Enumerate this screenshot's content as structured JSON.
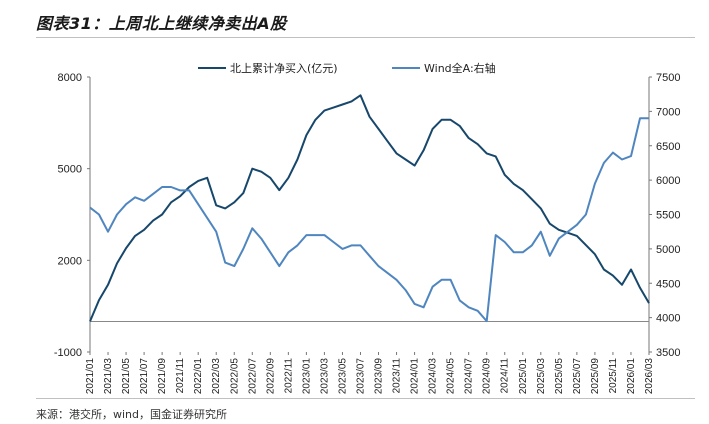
{
  "title": "图表31：上周北上继续净卖出A股",
  "source": "来源：港交所，wind，国金证券研究所",
  "chart_data": {
    "type": "line",
    "title": "",
    "legend": {
      "placement": "top-center",
      "entries": [
        "北上累计净买入(亿元)",
        "Wind全A:右轴"
      ]
    },
    "x_ticks": [
      "2021/01",
      "2021/03",
      "2021/05",
      "2021/07",
      "2021/09",
      "2021/11",
      "2022/01",
      "2022/03",
      "2022/05",
      "2022/07",
      "2022/09",
      "2022/11",
      "2023/01",
      "2023/03",
      "2023/05",
      "2023/07",
      "2023/09",
      "2023/11",
      "2024/01",
      "2024/03",
      "2024/05",
      "2024/07",
      "2024/09",
      "2024/11",
      "2025/01",
      "2025/03",
      "2025/05",
      "2025/07",
      "2025/09",
      "2025/11",
      "2026/01",
      "2026/03"
    ],
    "y_left": {
      "ticks": [
        "8000",
        "5000",
        "2000",
        "-1000"
      ],
      "min": -1000,
      "max": 8000
    },
    "y_right": {
      "ticks": [
        "7500",
        "7000",
        "6500",
        "6000",
        "5500",
        "5000",
        "4500",
        "4000",
        "3500"
      ],
      "min": 3500,
      "max": 7500
    },
    "grid": false,
    "series": [
      {
        "name": "北上累计净买入(亿元)",
        "axis": "left",
        "color": "#17476b",
        "x": [
          "2021/01",
          "2021/02",
          "2021/03",
          "2021/04",
          "2021/05",
          "2021/06",
          "2021/07",
          "2021/08",
          "2021/09",
          "2021/10",
          "2021/11",
          "2021/12",
          "2022/01",
          "2022/02",
          "2022/03",
          "2022/04",
          "2022/05",
          "2022/06",
          "2022/07",
          "2022/08",
          "2022/09",
          "2022/10",
          "2022/11",
          "2022/12",
          "2023/01",
          "2023/02",
          "2023/03",
          "2023/04",
          "2023/05",
          "2023/06",
          "2023/07",
          "2023/08",
          "2023/09",
          "2023/10",
          "2023/11",
          "2023/12",
          "2024/01",
          "2024/02",
          "2024/03",
          "2024/04",
          "2024/05",
          "2024/06",
          "2024/07",
          "2024/08",
          "2024/09",
          "2024/10",
          "2024/11",
          "2024/12",
          "2025/01",
          "2025/02",
          "2025/03",
          "2025/04",
          "2025/05",
          "2025/06",
          "2025/07",
          "2025/08",
          "2025/09",
          "2025/10",
          "2025/11",
          "2025/12",
          "2026/01",
          "2026/02",
          "2026/03"
        ],
        "values": [
          0,
          700,
          1200,
          1900,
          2400,
          2800,
          3000,
          3300,
          3500,
          3900,
          4100,
          4400,
          4600,
          4700,
          3800,
          3700,
          3900,
          4200,
          5000,
          4900,
          4700,
          4300,
          4700,
          5300,
          6100,
          6600,
          6900,
          7000,
          7100,
          7200,
          7400,
          6700,
          6300,
          5900,
          5500,
          5300,
          5100,
          5600,
          6300,
          6600,
          6600,
          6400,
          6000,
          5800,
          5500,
          5400,
          4800,
          4500,
          4300,
          4000,
          3700,
          3200,
          3000,
          2900,
          2800,
          2500,
          2200,
          1700,
          1500,
          1200,
          1700,
          1100,
          600
        ]
      },
      {
        "name": "Wind全A:右轴",
        "axis": "right",
        "color": "#4f86bf",
        "x": [
          "2021/01",
          "2021/02",
          "2021/03",
          "2021/04",
          "2021/05",
          "2021/06",
          "2021/07",
          "2021/08",
          "2021/09",
          "2021/10",
          "2021/11",
          "2021/12",
          "2022/01",
          "2022/02",
          "2022/03",
          "2022/04",
          "2022/05",
          "2022/06",
          "2022/07",
          "2022/08",
          "2022/09",
          "2022/10",
          "2022/11",
          "2022/12",
          "2023/01",
          "2023/02",
          "2023/03",
          "2023/04",
          "2023/05",
          "2023/06",
          "2023/07",
          "2023/08",
          "2023/09",
          "2023/10",
          "2023/11",
          "2023/12",
          "2024/01",
          "2024/02",
          "2024/03",
          "2024/04",
          "2024/05",
          "2024/06",
          "2024/07",
          "2024/08",
          "2024/09",
          "2024/10",
          "2024/11",
          "2024/12",
          "2025/01",
          "2025/02",
          "2025/03",
          "2025/04",
          "2025/05",
          "2025/06",
          "2025/07",
          "2025/08",
          "2025/09",
          "2025/10",
          "2025/11",
          "2025/12",
          "2026/01",
          "2026/02",
          "2026/03"
        ],
        "values": [
          5600,
          5500,
          5250,
          5500,
          5650,
          5750,
          5700,
          5800,
          5900,
          5900,
          5850,
          5850,
          5650,
          5450,
          5250,
          4800,
          4750,
          5000,
          5300,
          5150,
          4950,
          4750,
          4950,
          5050,
          5200,
          5200,
          5200,
          5100,
          5000,
          5050,
          5050,
          4900,
          4750,
          4650,
          4550,
          4400,
          4200,
          4150,
          4450,
          4550,
          4550,
          4250,
          4150,
          4100,
          3950,
          5200,
          5100,
          4950,
          4950,
          5050,
          5250,
          4900,
          5150,
          5250,
          5350,
          5500,
          5950,
          6250,
          6400,
          6300,
          6350,
          6900,
          6900
        ]
      }
    ]
  }
}
